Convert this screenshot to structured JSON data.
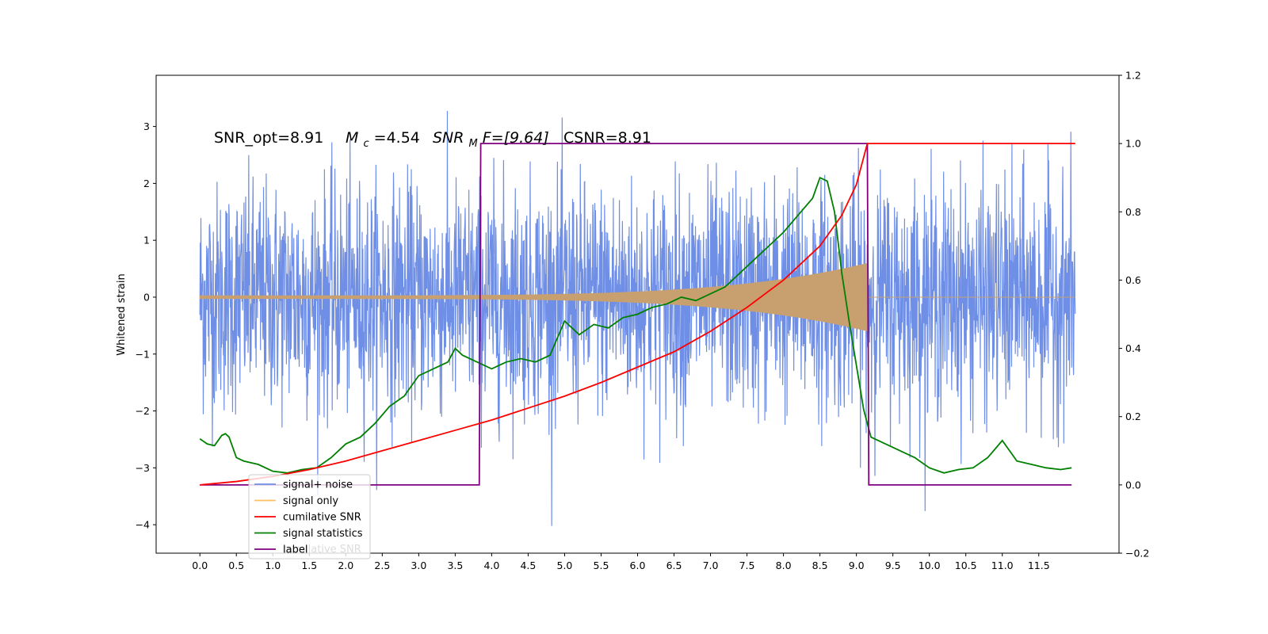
{
  "chart_data": {
    "type": "line",
    "ylabel": "Whitened strain",
    "annotation": {
      "snr_opt": "SNR_opt=8.91",
      "mc_sym": "M",
      "mc_sub": "c",
      "mc_val": "=4.54",
      "snr_mf_sym": "SNR",
      "snr_mf_sub": "M",
      "snr_mf_val": "F=[9.64]",
      "csnr": "CSNR=8.91"
    },
    "x_ticks": [
      "0.0",
      "0.5",
      "1.0",
      "1.5",
      "2.0",
      "2.5",
      "3.0",
      "3.5",
      "4.0",
      "4.5",
      "5.0",
      "5.5",
      "6.0",
      "6.5",
      "7.0",
      "7.5",
      "8.0",
      "8.5",
      "9.0",
      "9.5",
      "10.0",
      "10.5",
      "11.0",
      "11.5"
    ],
    "xlim": [
      -0.6,
      12.6
    ],
    "y_left": {
      "lim": [
        -4.5,
        3.9
      ],
      "ticks": [
        "3",
        "2",
        "1",
        "0",
        "−1",
        "−2",
        "−3",
        "−4"
      ]
    },
    "y_right": {
      "lim": [
        -0.2,
        1.2
      ],
      "ticks": [
        "1.2",
        "1.0",
        "0.8",
        "0.6",
        "0.4",
        "0.2",
        "0.0",
        "−0.2"
      ]
    },
    "noise": {
      "x_start": 0.0,
      "x_end": 12.0,
      "sigma": 1.0,
      "color": "#6f8fe6"
    },
    "signal": {
      "x_start": 0.0,
      "x_merger": 9.15,
      "color": "#c8a070",
      "amplitude_at_start": 0.03,
      "amplitude_at_merger": 0.6
    },
    "series": [
      {
        "name": "signal+ noise",
        "color": "#6f8fe6",
        "axis": "left"
      },
      {
        "name": "signal only",
        "color": "#ffbf60",
        "axis": "left"
      },
      {
        "name": "cumilative SNR",
        "color": "#ff0000",
        "axis": "right",
        "x": [
          0.0,
          0.5,
          1.0,
          1.5,
          2.0,
          2.5,
          3.0,
          3.5,
          4.0,
          4.5,
          5.0,
          5.5,
          6.0,
          6.5,
          7.0,
          7.5,
          8.0,
          8.5,
          8.8,
          9.0,
          9.15,
          12.0
        ],
        "y": [
          0.0,
          0.01,
          0.025,
          0.045,
          0.07,
          0.1,
          0.13,
          0.16,
          0.19,
          0.225,
          0.26,
          0.3,
          0.345,
          0.39,
          0.45,
          0.52,
          0.6,
          0.7,
          0.79,
          0.88,
          1.0,
          1.0
        ]
      },
      {
        "name": "signal statistics",
        "color": "#008000",
        "axis": "right",
        "x": [
          0.0,
          0.1,
          0.2,
          0.3,
          0.35,
          0.4,
          0.5,
          0.6,
          0.8,
          1.0,
          1.2,
          1.4,
          1.6,
          1.8,
          2.0,
          2.2,
          2.4,
          2.6,
          2.8,
          3.0,
          3.2,
          3.4,
          3.5,
          3.6,
          3.8,
          4.0,
          4.2,
          4.4,
          4.6,
          4.8,
          5.0,
          5.2,
          5.4,
          5.6,
          5.8,
          6.0,
          6.2,
          6.4,
          6.6,
          6.8,
          7.0,
          7.2,
          7.4,
          7.6,
          7.8,
          8.0,
          8.2,
          8.4,
          8.5,
          8.6,
          8.7,
          8.8,
          8.9,
          9.0,
          9.1,
          9.2,
          9.4,
          9.6,
          9.8,
          10.0,
          10.2,
          10.4,
          10.6,
          10.8,
          11.0,
          11.1,
          11.2,
          11.4,
          11.6,
          11.8,
          11.95
        ],
        "y": [
          0.135,
          0.12,
          0.115,
          0.145,
          0.15,
          0.14,
          0.08,
          0.07,
          0.06,
          0.04,
          0.035,
          0.045,
          0.05,
          0.08,
          0.12,
          0.14,
          0.18,
          0.23,
          0.26,
          0.32,
          0.34,
          0.36,
          0.4,
          0.38,
          0.36,
          0.34,
          0.36,
          0.37,
          0.36,
          0.38,
          0.48,
          0.44,
          0.47,
          0.46,
          0.49,
          0.5,
          0.52,
          0.53,
          0.55,
          0.54,
          0.56,
          0.58,
          0.62,
          0.66,
          0.7,
          0.74,
          0.79,
          0.84,
          0.9,
          0.89,
          0.8,
          0.62,
          0.48,
          0.35,
          0.22,
          0.14,
          0.12,
          0.1,
          0.08,
          0.05,
          0.035,
          0.045,
          0.05,
          0.08,
          0.13,
          0.1,
          0.07,
          0.06,
          0.05,
          0.045,
          0.05
        ]
      },
      {
        "name": "label",
        "color": "#800080",
        "axis": "right",
        "x": [
          0.0,
          3.83,
          3.85,
          9.15,
          9.17,
          11.95
        ],
        "y": [
          0.0,
          0.0,
          1.0,
          1.0,
          0.0,
          0.0
        ]
      }
    ],
    "legend": {
      "placement": "lower-left",
      "hidden_text": "cumilative SNR"
    }
  }
}
